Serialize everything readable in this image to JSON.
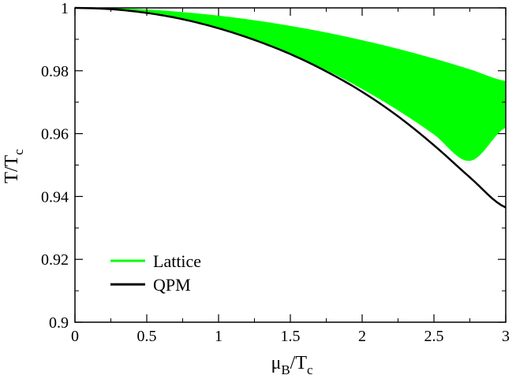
{
  "chart_data": {
    "type": "area",
    "title": "",
    "xlabel": {
      "main": "μ",
      "sub1": "B",
      "slash": "/T",
      "sub2": "c"
    },
    "ylabel": {
      "main": "T/T",
      "sub": "c"
    },
    "xlim": [
      0,
      3
    ],
    "ylim": [
      0.9,
      1.0
    ],
    "x_ticks": [
      0,
      0.5,
      1,
      1.5,
      2,
      2.5,
      3
    ],
    "x_tick_labels": [
      "0",
      "0.5",
      "1",
      "1.5",
      "2",
      "2.5",
      "3"
    ],
    "y_ticks": [
      0.9,
      0.92,
      0.94,
      0.96,
      0.98,
      1.0
    ],
    "y_tick_labels": [
      "0.9",
      "0.92",
      "0.94",
      "0.96",
      "0.98",
      "1"
    ],
    "grid": false,
    "legend": {
      "placement": "bottom-left"
    },
    "series": [
      {
        "name": "Lattice",
        "kind": "band",
        "color": "#00ff00",
        "x": [
          0,
          0.25,
          0.5,
          0.75,
          1.0,
          1.25,
          1.5,
          1.75,
          2.0,
          2.25,
          2.5,
          2.75,
          3.0
        ],
        "upper": [
          1.0,
          0.99984,
          0.99935,
          0.99854,
          0.9974,
          0.99594,
          0.99415,
          0.99204,
          0.9896,
          0.98684,
          0.98375,
          0.98034,
          0.9766
        ],
        "lower": [
          1.0,
          0.9996,
          0.9984,
          0.99638,
          0.99356,
          0.98994,
          0.98553,
          0.98034,
          0.97434,
          0.96753,
          0.95989,
          0.95141,
          0.9621
        ]
      },
      {
        "name": "QPM",
        "kind": "line",
        "color": "#000000",
        "x": [
          0,
          0.25,
          0.5,
          0.75,
          1.0,
          1.25,
          1.5,
          1.75,
          2.0,
          2.25,
          2.5,
          2.75,
          3.0
        ],
        "y": [
          1.0,
          0.9996,
          0.9984,
          0.9964,
          0.9935,
          0.9898,
          0.9853,
          0.9798,
          0.9733,
          0.9655,
          0.9563,
          0.9461,
          0.9365
        ]
      }
    ]
  }
}
